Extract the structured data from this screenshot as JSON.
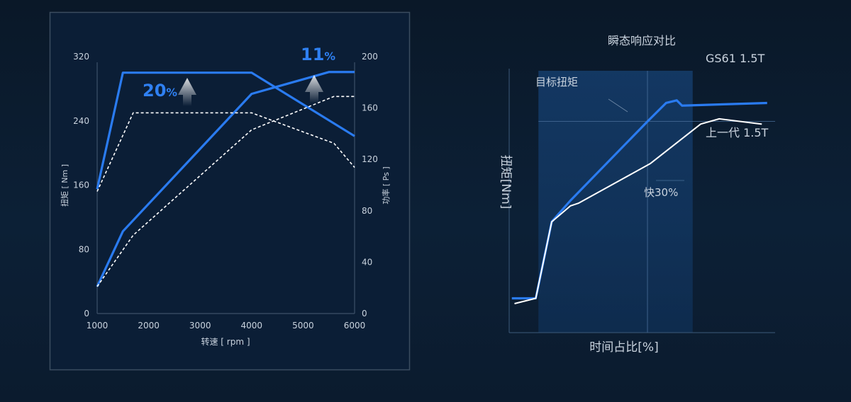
{
  "chart_data": [
    {
      "type": "line",
      "xlabel": "转速 [ rpm ]",
      "ylabel": "扭矩 [ Nm ]",
      "y2label": "功率 [ Ps ]",
      "xlim": [
        1000,
        6000
      ],
      "ylim": [
        0,
        320
      ],
      "y2lim": [
        0,
        200
      ],
      "xticks": [
        "1000",
        "2000",
        "3000",
        "4000",
        "5000",
        "6000"
      ],
      "yticks": [
        "0",
        "80",
        "160",
        "240",
        "320"
      ],
      "y2ticks": [
        "0",
        "40",
        "80",
        "120",
        "160",
        "200"
      ],
      "grid": false,
      "colors": {
        "new": "#2a7bf0",
        "old": "#ffffff"
      },
      "annotations": [
        {
          "text": "20",
          "suffix": "%"
        },
        {
          "text": "11",
          "suffix": "%"
        }
      ],
      "series": [
        {
          "axis": "left",
          "style": "solid",
          "color": "#2a7bf0",
          "x": [
            1000,
            1500,
            4000,
            6000
          ],
          "y": [
            155,
            300,
            300,
            221
          ]
        },
        {
          "axis": "right",
          "style": "solid",
          "color": "#2a7bf0",
          "x": [
            1000,
            1500,
            4000,
            5500,
            6000
          ],
          "y": [
            21,
            64,
            171,
            188,
            188
          ]
        },
        {
          "axis": "left",
          "style": "dashed",
          "color": "#ffffff",
          "x": [
            1000,
            1700,
            4000,
            5600,
            6000
          ],
          "y": [
            152,
            250,
            250,
            212,
            182
          ]
        },
        {
          "axis": "right",
          "style": "dashed",
          "color": "#ffffff",
          "x": [
            1000,
            1700,
            4000,
            5600,
            6000
          ],
          "y": [
            21,
            61,
            143,
            169,
            169
          ]
        }
      ]
    },
    {
      "type": "line",
      "title": "瞬态响应对比",
      "xlabel": "时间占比[%]",
      "ylabel": "扭矩[Nm]",
      "annotations": [
        "目标扭矩",
        "快30%"
      ],
      "series": [
        {
          "name": "GS61   1.5T",
          "color": "#2a7bf0",
          "x": [
            1,
            10,
            16,
            23,
            52,
            59,
            63,
            65,
            97
          ],
          "y": [
            13,
            13,
            42,
            50,
            80,
            87,
            88,
            86,
            87
          ]
        },
        {
          "name": "上一代   1.5T",
          "color": "#ffffff",
          "x": [
            2,
            10,
            16,
            23,
            26,
            53,
            72,
            79,
            95
          ],
          "y": [
            11,
            13,
            42,
            48,
            49,
            64,
            79,
            81,
            79
          ]
        }
      ],
      "target_torque": 80,
      "shaded_range": [
        11,
        69
      ],
      "reference_x": 52
    }
  ]
}
